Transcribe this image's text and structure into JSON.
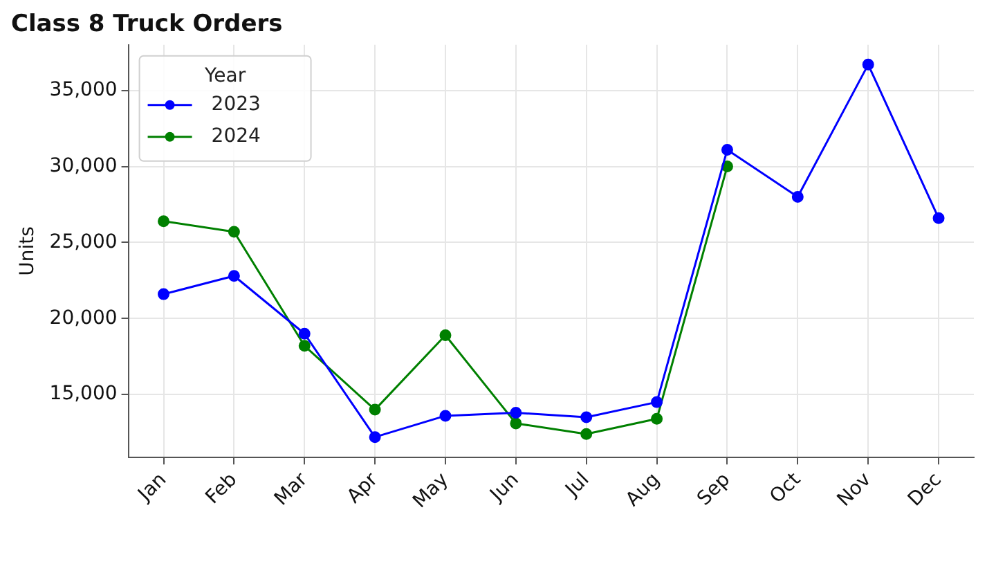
{
  "chart_data": {
    "type": "line",
    "title": "Class 8 Truck Orders",
    "ylabel": "Units",
    "legend_title": "Year",
    "legend": "top left",
    "grid": true,
    "marker": "circle",
    "line_style": "solid",
    "categories": [
      "Jan",
      "Feb",
      "Mar",
      "Apr",
      "May",
      "Jun",
      "Jul",
      "Aug",
      "Sep",
      "Oct",
      "Nov",
      "Dec"
    ],
    "ylim": [
      10850,
      38000
    ],
    "yticks": [
      {
        "value": 15000,
        "label": "15,000"
      },
      {
        "value": 20000,
        "label": "20,000"
      },
      {
        "value": 25000,
        "label": "25,000"
      },
      {
        "value": 30000,
        "label": "30,000"
      },
      {
        "value": 35000,
        "label": "35,000"
      }
    ],
    "series": [
      {
        "name": "2023",
        "color": "#0000ff",
        "values": [
          21600,
          22800,
          19000,
          12200,
          13600,
          13800,
          13500,
          14500,
          31100,
          28000,
          36700,
          26600
        ]
      },
      {
        "name": "2024",
        "color": "#008000",
        "values": [
          26400,
          25700,
          18200,
          14000,
          18900,
          13100,
          12400,
          13400,
          30000,
          null,
          null,
          null
        ]
      }
    ]
  }
}
